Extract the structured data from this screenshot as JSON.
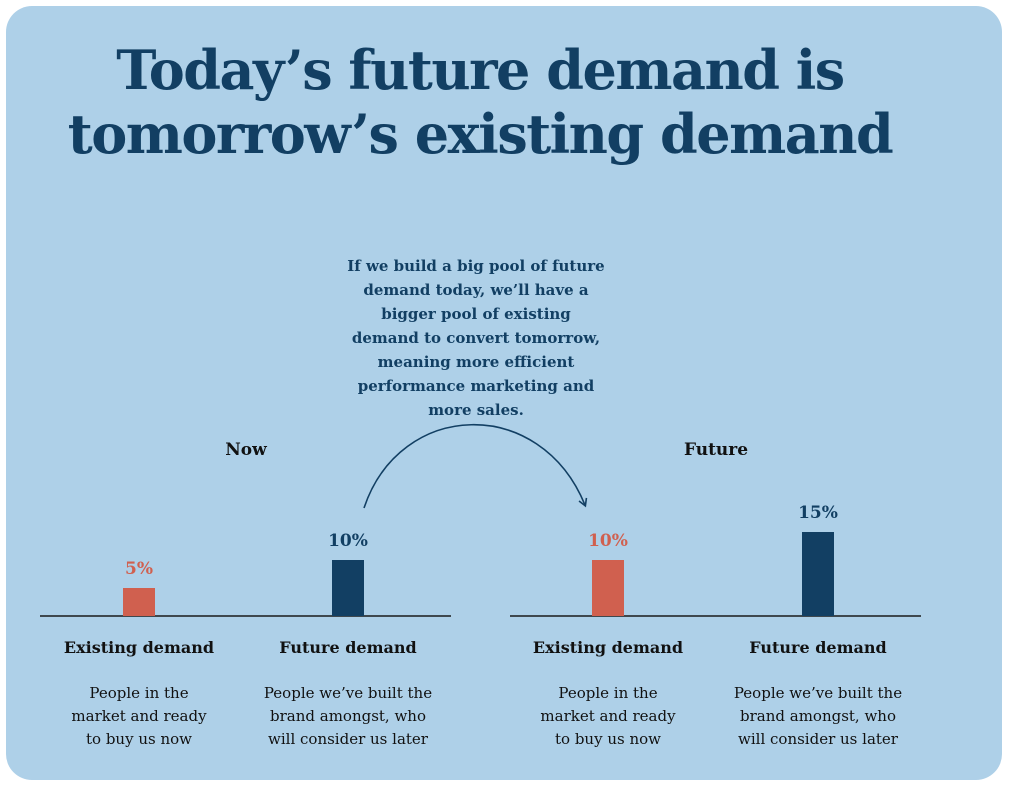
{
  "title_lines": [
    "Today’s future demand is",
    "tomorrow’s existing demand"
  ],
  "callout_lines": [
    "If we build a big pool of future",
    "demand today, we’ll have a",
    "bigger pool of existing",
    "demand to convert tomorrow,",
    "meaning more efficient",
    "performance marketing and",
    "more sales."
  ],
  "colors": {
    "existing": "#d0604f",
    "future": "#123f63",
    "background": "#aed0e8"
  },
  "chart_data": {
    "type": "bar",
    "ylim": [
      0,
      20
    ],
    "panels": [
      {
        "label": "Now",
        "bars": [
          {
            "category": "Existing demand",
            "value": 5,
            "value_label": "5%",
            "color": "#d0604f",
            "description": [
              "People in the",
              "market and ready",
              "to buy us now"
            ]
          },
          {
            "category": "Future demand",
            "value": 10,
            "value_label": "10%",
            "color": "#123f63",
            "description": [
              "People we’ve built the",
              "brand amongst, who",
              "will consider us later"
            ]
          }
        ]
      },
      {
        "label": "Future",
        "bars": [
          {
            "category": "Existing demand",
            "value": 10,
            "value_label": "10%",
            "color": "#d0604f",
            "description": [
              "People in the",
              "market and ready",
              "to buy us now"
            ]
          },
          {
            "category": "Future demand",
            "value": 15,
            "value_label": "15%",
            "color": "#123f63",
            "description": [
              "People we’ve built the",
              "brand amongst, who",
              "will consider us later"
            ]
          }
        ]
      }
    ]
  }
}
